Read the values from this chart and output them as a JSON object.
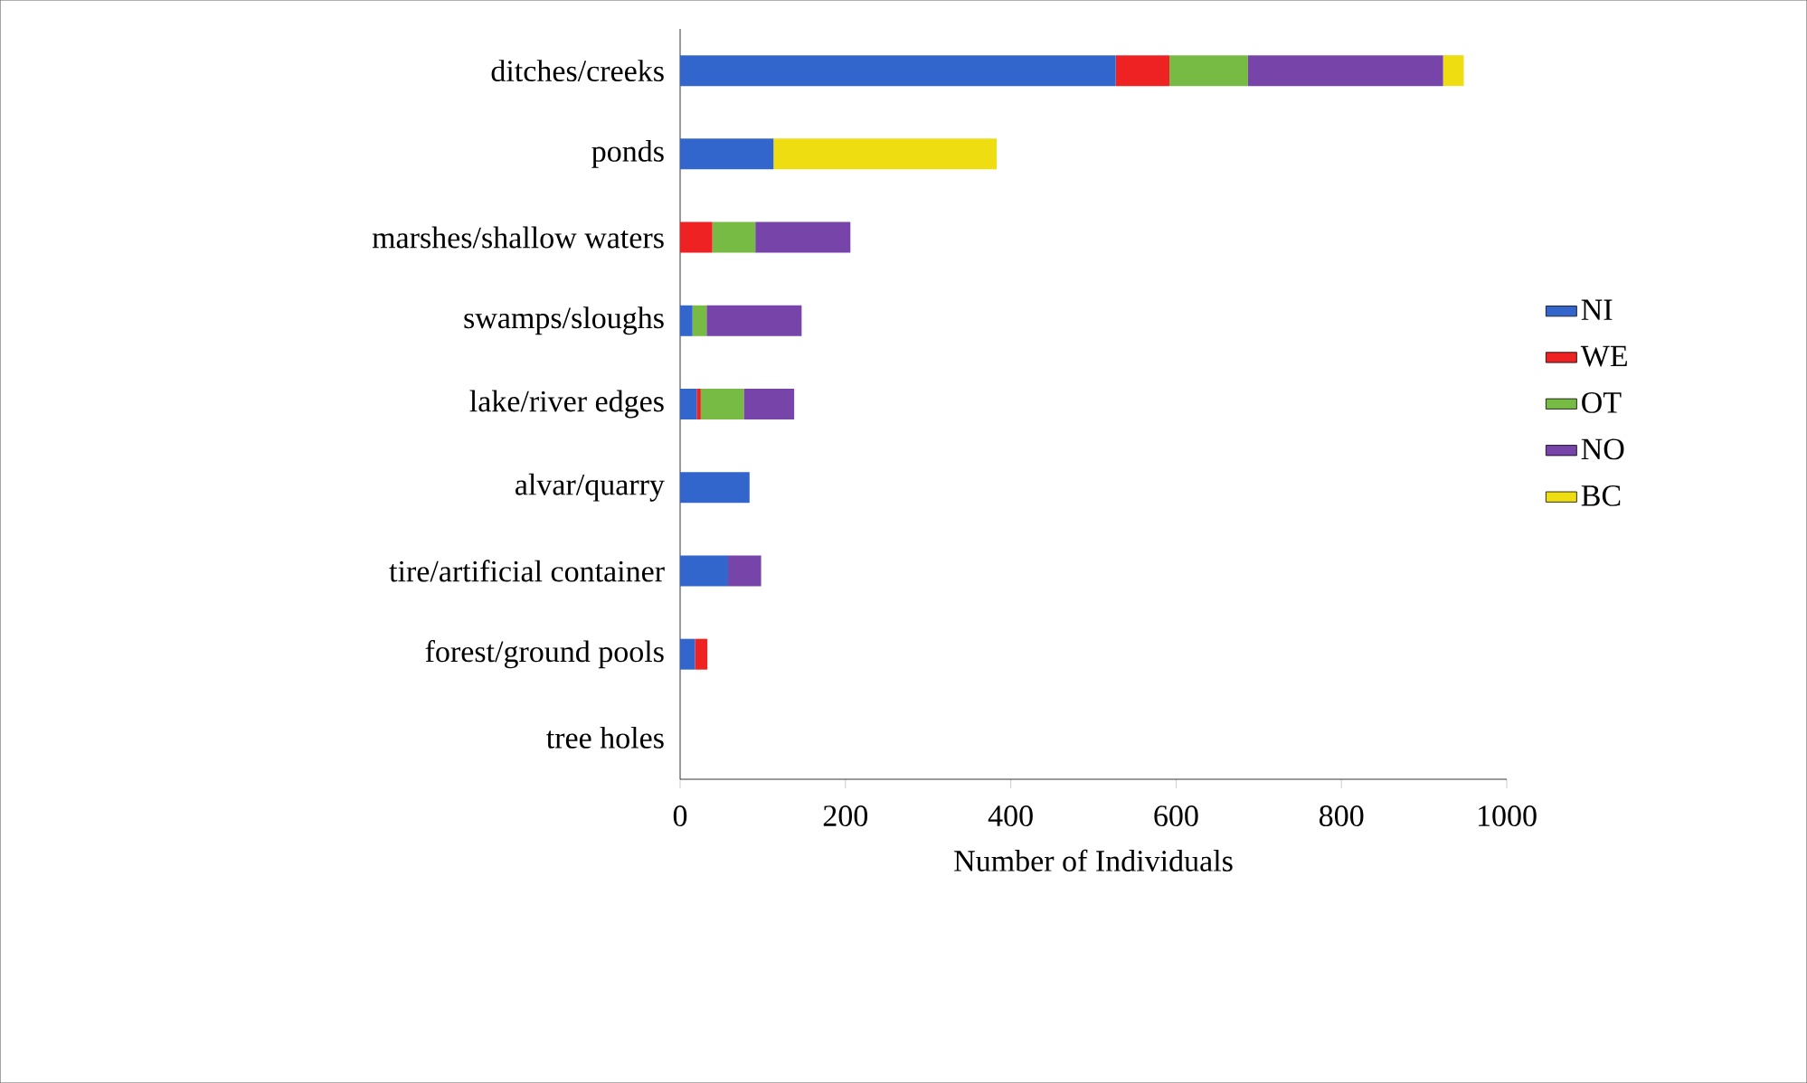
{
  "chart_data": {
    "type": "bar",
    "orientation": "horizontal",
    "stacked": true,
    "xlabel": "Number of Individuals",
    "categories": [
      "ditches/creeks",
      "ponds",
      "marshes/shallow waters",
      "swamps/sloughs",
      "lake/river edges",
      "alvar/quarry",
      "tire/artificial container",
      "forest/ground pools",
      "tree holes"
    ],
    "series": [
      {
        "name": "NI",
        "color": "#3366cc",
        "values": [
          527,
          113,
          0,
          15,
          20,
          84,
          58,
          18,
          0
        ]
      },
      {
        "name": "WE",
        "color": "#ee2222",
        "values": [
          65,
          0,
          39,
          0,
          5,
          0,
          0,
          15,
          0
        ]
      },
      {
        "name": "OT",
        "color": "#77bb44",
        "values": [
          95,
          0,
          52,
          17,
          52,
          0,
          0,
          0,
          0
        ]
      },
      {
        "name": "NO",
        "color": "#7744aa",
        "values": [
          236,
          0,
          115,
          115,
          61,
          0,
          40,
          0,
          0
        ]
      },
      {
        "name": "BC",
        "color": "#eedd11",
        "values": [
          25,
          270,
          0,
          0,
          0,
          0,
          0,
          0,
          0
        ]
      }
    ],
    "xlim": [
      0,
      1000
    ],
    "xticks": [
      0,
      200,
      400,
      600,
      800,
      1000
    ],
    "grid": false,
    "legend": "right"
  }
}
